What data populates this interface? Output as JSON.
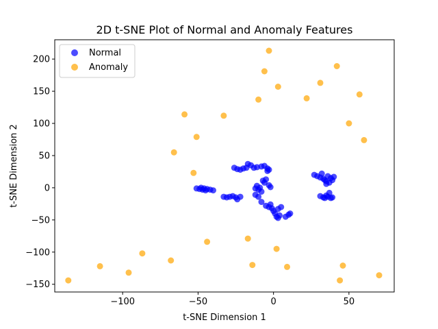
{
  "chart_data": {
    "type": "scatter",
    "title": "2D t-SNE Plot of Normal and Anomaly Features",
    "xlabel": "t-SNE Dimension 1",
    "ylabel": "t-SNE Dimension 2",
    "xlim": [
      -145,
      80
    ],
    "ylim": [
      -162,
      230
    ],
    "xticks": [
      -100,
      -50,
      0,
      50
    ],
    "yticks": [
      -150,
      -100,
      -50,
      0,
      50,
      100,
      150,
      200
    ],
    "xtick_labels": [
      "−100",
      "−50",
      "0",
      "50"
    ],
    "ytick_labels": [
      "−150",
      "−100",
      "−50",
      "0",
      "50",
      "100",
      "150",
      "200"
    ],
    "legend_position": "top-left",
    "grid": false,
    "series": [
      {
        "name": "Normal",
        "color": "#0000ff",
        "points": [
          [
            -51,
            -1
          ],
          [
            -49,
            -2
          ],
          [
            -47,
            -3
          ],
          [
            -48,
            0
          ],
          [
            -46,
            -1
          ],
          [
            -45,
            -4
          ],
          [
            -44,
            -2
          ],
          [
            -42,
            -3
          ],
          [
            -40,
            -4
          ],
          [
            -33,
            -14
          ],
          [
            -31,
            -15
          ],
          [
            -29,
            -14
          ],
          [
            -27,
            -13
          ],
          [
            -25,
            -15
          ],
          [
            -24,
            -18
          ],
          [
            -22,
            -14
          ],
          [
            -26,
            31
          ],
          [
            -24,
            29
          ],
          [
            -22,
            28
          ],
          [
            -20,
            30
          ],
          [
            -18,
            31
          ],
          [
            -17,
            37
          ],
          [
            -15,
            35
          ],
          [
            -13,
            31
          ],
          [
            -11,
            32
          ],
          [
            -8,
            33
          ],
          [
            -6,
            34
          ],
          [
            -4,
            30
          ],
          [
            -4,
            26
          ],
          [
            -3,
            28
          ],
          [
            -7,
            11
          ],
          [
            -5,
            13
          ],
          [
            -6,
            8
          ],
          [
            -3,
            4
          ],
          [
            -2,
            1
          ],
          [
            -12,
            -1
          ],
          [
            -11,
            3
          ],
          [
            -10,
            -3
          ],
          [
            -9,
            0
          ],
          [
            -8,
            -6
          ],
          [
            -12,
            -11
          ],
          [
            -10,
            -14
          ],
          [
            -8,
            -22
          ],
          [
            -5,
            -28
          ],
          [
            -3,
            -30
          ],
          [
            -2,
            -26
          ],
          [
            -1,
            -32
          ],
          [
            0,
            -36
          ],
          [
            1,
            -40
          ],
          [
            2,
            -45
          ],
          [
            3,
            -47
          ],
          [
            4,
            -43
          ],
          [
            3,
            -33
          ],
          [
            5,
            -30
          ],
          [
            8,
            -45
          ],
          [
            10,
            -42
          ],
          [
            11,
            -40
          ],
          [
            27,
            20
          ],
          [
            29,
            18
          ],
          [
            31,
            16
          ],
          [
            32,
            22
          ],
          [
            33,
            14
          ],
          [
            34,
            12
          ],
          [
            35,
            10
          ],
          [
            36,
            18
          ],
          [
            37,
            8
          ],
          [
            38,
            15
          ],
          [
            39,
            12
          ],
          [
            40,
            17
          ],
          [
            35,
            6
          ],
          [
            31,
            -13
          ],
          [
            33,
            -15
          ],
          [
            35,
            -12
          ],
          [
            37,
            -8
          ],
          [
            38,
            -16
          ],
          [
            36,
            -14
          ],
          [
            34,
            -16
          ],
          [
            39,
            -15
          ]
        ]
      },
      {
        "name": "Anomaly",
        "color": "#ffa500",
        "points": [
          [
            -3,
            213
          ],
          [
            -6,
            181
          ],
          [
            42,
            189
          ],
          [
            31,
            163
          ],
          [
            3,
            157
          ],
          [
            57,
            145
          ],
          [
            -10,
            137
          ],
          [
            22,
            139
          ],
          [
            -59,
            114
          ],
          [
            -33,
            112
          ],
          [
            50,
            100
          ],
          [
            -51,
            79
          ],
          [
            60,
            74
          ],
          [
            -66,
            55
          ],
          [
            -53,
            23
          ],
          [
            -44,
            -84
          ],
          [
            -17,
            -79
          ],
          [
            2,
            -95
          ],
          [
            -87,
            -102
          ],
          [
            -68,
            -113
          ],
          [
            -115,
            -122
          ],
          [
            -14,
            -120
          ],
          [
            46,
            -121
          ],
          [
            9,
            -123
          ],
          [
            -96,
            -132
          ],
          [
            70,
            -136
          ],
          [
            -136,
            -144
          ],
          [
            44,
            -144
          ]
        ]
      }
    ]
  }
}
